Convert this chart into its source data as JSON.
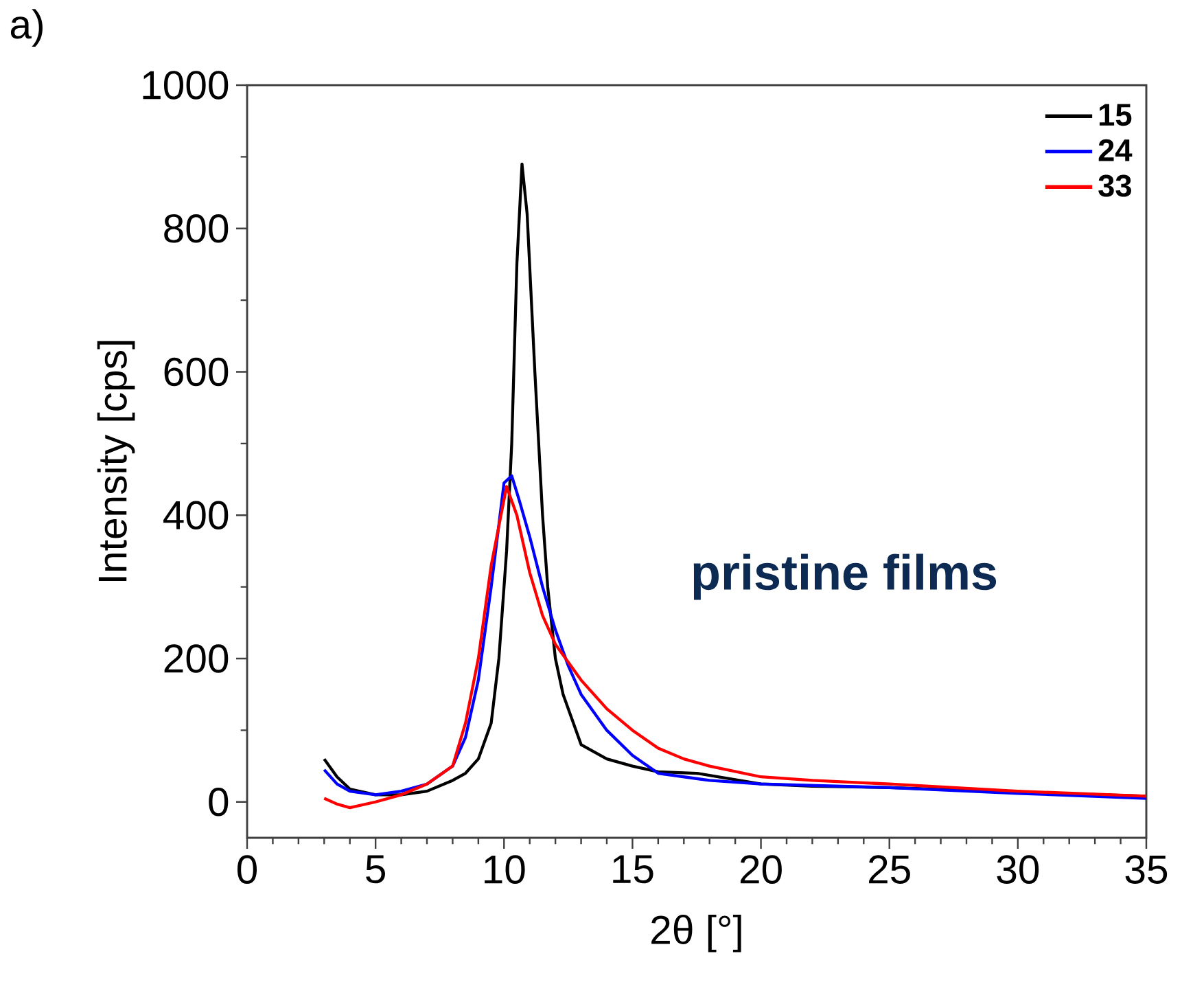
{
  "chart_data": {
    "type": "line",
    "xlabel": "2θ [°]",
    "ylabel": "Intensity [cps]",
    "xlim": [
      0,
      35
    ],
    "ylim": [
      -50,
      1000
    ],
    "xticks": [
      0,
      5,
      10,
      15,
      20,
      25,
      30,
      35
    ],
    "yticks": [
      0,
      200,
      400,
      600,
      800,
      1000
    ],
    "legend": "top right",
    "grid": false,
    "marker": "none",
    "line_style": "solid",
    "annotations": [
      "a)",
      "pristine films"
    ],
    "series": [
      {
        "name": "15",
        "color": "#000000",
        "x": [
          3,
          3.5,
          4,
          5,
          6,
          7,
          8,
          8.5,
          9,
          9.5,
          9.8,
          10.1,
          10.3,
          10.5,
          10.7,
          10.9,
          11.2,
          11.5,
          11.7,
          12,
          12.3,
          13,
          14,
          15,
          16,
          17.5,
          20,
          22,
          25,
          28,
          30,
          33,
          35
        ],
        "values": [
          60,
          35,
          18,
          10,
          10,
          15,
          30,
          40,
          60,
          110,
          200,
          350,
          500,
          750,
          890,
          820,
          600,
          400,
          300,
          200,
          150,
          80,
          60,
          50,
          42,
          40,
          25,
          22,
          20,
          null,
          null,
          null,
          8
        ]
      },
      {
        "name": "24",
        "color": "#0000ff",
        "x": [
          3,
          3.5,
          4,
          5,
          6,
          7,
          8,
          8.5,
          9,
          9.5,
          10,
          10.3,
          10.6,
          11,
          11.5,
          12,
          12.5,
          13,
          14,
          15,
          16,
          18,
          20,
          25,
          30,
          35
        ],
        "values": [
          45,
          25,
          15,
          10,
          15,
          25,
          50,
          90,
          170,
          300,
          445,
          455,
          420,
          370,
          300,
          240,
          190,
          150,
          100,
          65,
          40,
          30,
          25,
          20,
          12,
          5
        ]
      },
      {
        "name": "33",
        "color": "#ff0000",
        "x": [
          3,
          3.5,
          4,
          5,
          6,
          7,
          8,
          8.5,
          9,
          9.5,
          10.1,
          10.5,
          11,
          11.5,
          12,
          13,
          14,
          15,
          16,
          17,
          18,
          20,
          22,
          25,
          30,
          35
        ],
        "values": [
          5,
          -3,
          -8,
          0,
          10,
          25,
          50,
          110,
          200,
          330,
          440,
          400,
          320,
          260,
          220,
          170,
          130,
          100,
          75,
          60,
          50,
          35,
          30,
          25,
          15,
          8
        ]
      }
    ]
  }
}
